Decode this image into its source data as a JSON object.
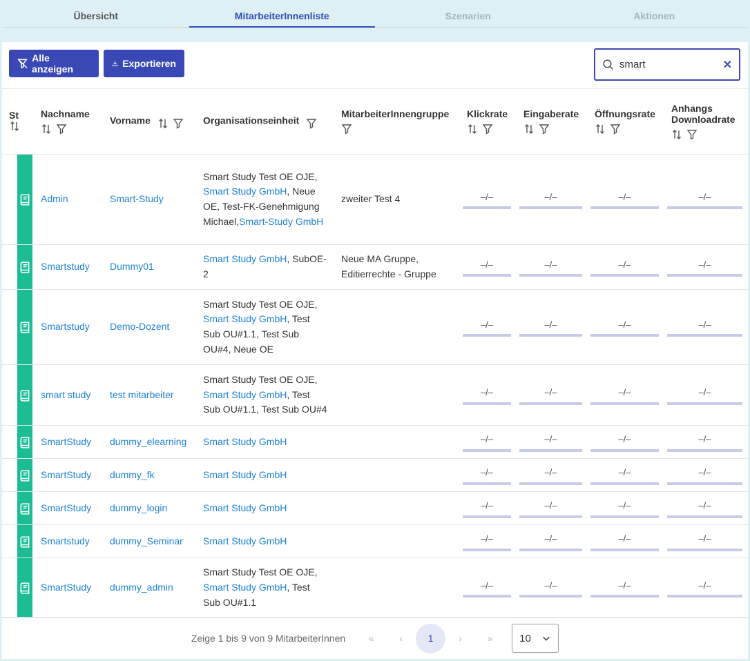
{
  "tabs": [
    {
      "label": "Übersicht",
      "state": "normal"
    },
    {
      "label": "MitarbeiterInnenliste",
      "state": "active"
    },
    {
      "label": "Szenarien",
      "state": "disabled"
    },
    {
      "label": "Aktionen",
      "state": "disabled"
    }
  ],
  "toolbar": {
    "show_all_label": "Alle anzeigen",
    "export_label": "Exportieren"
  },
  "search": {
    "value": "smart",
    "clear_icon": "close-icon"
  },
  "columns": {
    "status": "St",
    "lastname": "Nachname",
    "firstname": "Vorname",
    "org": "Organisationseinheit",
    "group": "MitarbeiterInnengruppe",
    "click": "Klickrate",
    "input": "Eingaberate",
    "open": "Öffnungsrate",
    "attach_line1": "Anhangs",
    "attach_line2": "Downloadrate"
  },
  "rate_placeholder": "–/–",
  "rows": [
    {
      "lastname": "Admin",
      "firstname": "Smart-Study",
      "org": [
        [
          "Smart Study Test OE OJE,",
          false
        ],
        [
          "Smart Study GmbH",
          true
        ],
        [
          ", Neue OE, Test-FK-Genehmigung Michael,",
          false
        ],
        [
          "Smart-Study GmbH",
          true
        ]
      ],
      "group": "zweiter Test 4"
    },
    {
      "lastname": "Smartstudy",
      "firstname": "Dummy01",
      "org": [
        [
          "Smart Study GmbH",
          true
        ],
        [
          ", SubOE-2",
          false
        ]
      ],
      "group": "Neue MA Gruppe, Editierrechte - Gruppe"
    },
    {
      "lastname": "Smartstudy",
      "firstname": "Demo-Dozent",
      "org": [
        [
          "Smart Study Test OE OJE,",
          false
        ],
        [
          "Smart Study GmbH",
          true
        ],
        [
          ", Test Sub OU#1.1, Test Sub OU#4, Neue OE",
          false
        ]
      ],
      "group": ""
    },
    {
      "lastname": "smart study",
      "firstname": "test mitarbeiter",
      "org": [
        [
          "Smart Study Test OE OJE,",
          false
        ],
        [
          "Smart Study GmbH",
          true
        ],
        [
          ", Test Sub OU#1.1, Test Sub OU#4",
          false
        ]
      ],
      "group": ""
    },
    {
      "lastname": "SmartStudy",
      "firstname": "dummy_elearning",
      "org": [
        [
          "Smart Study GmbH",
          true
        ]
      ],
      "group": ""
    },
    {
      "lastname": "SmartStudy",
      "firstname": "dummy_fk",
      "org": [
        [
          "Smart Study GmbH",
          true
        ]
      ],
      "group": ""
    },
    {
      "lastname": "SmartStudy",
      "firstname": "dummy_login",
      "org": [
        [
          "Smart Study GmbH",
          true
        ]
      ],
      "group": ""
    },
    {
      "lastname": "Smartstudy",
      "firstname": "dummy_Seminar",
      "org": [
        [
          "Smart Study GmbH",
          true
        ]
      ],
      "group": ""
    },
    {
      "lastname": "SmartStudy",
      "firstname": "dummy_admin",
      "org": [
        [
          "Smart Study Test OE OJE,",
          false
        ],
        [
          "Smart Study GmbH",
          true
        ],
        [
          ", Test Sub OU#1.1",
          false
        ]
      ],
      "group": ""
    }
  ],
  "pager": {
    "info": "Zeige 1 bis 9 von 9 MitarbeiterInnen",
    "first": "«",
    "prev": "‹",
    "current": "1",
    "next": "›",
    "last": "»",
    "rows_per_page": "10"
  },
  "colors": {
    "accent": "#3948b4",
    "status": "#1cbd95",
    "link": "#1e82d8"
  }
}
